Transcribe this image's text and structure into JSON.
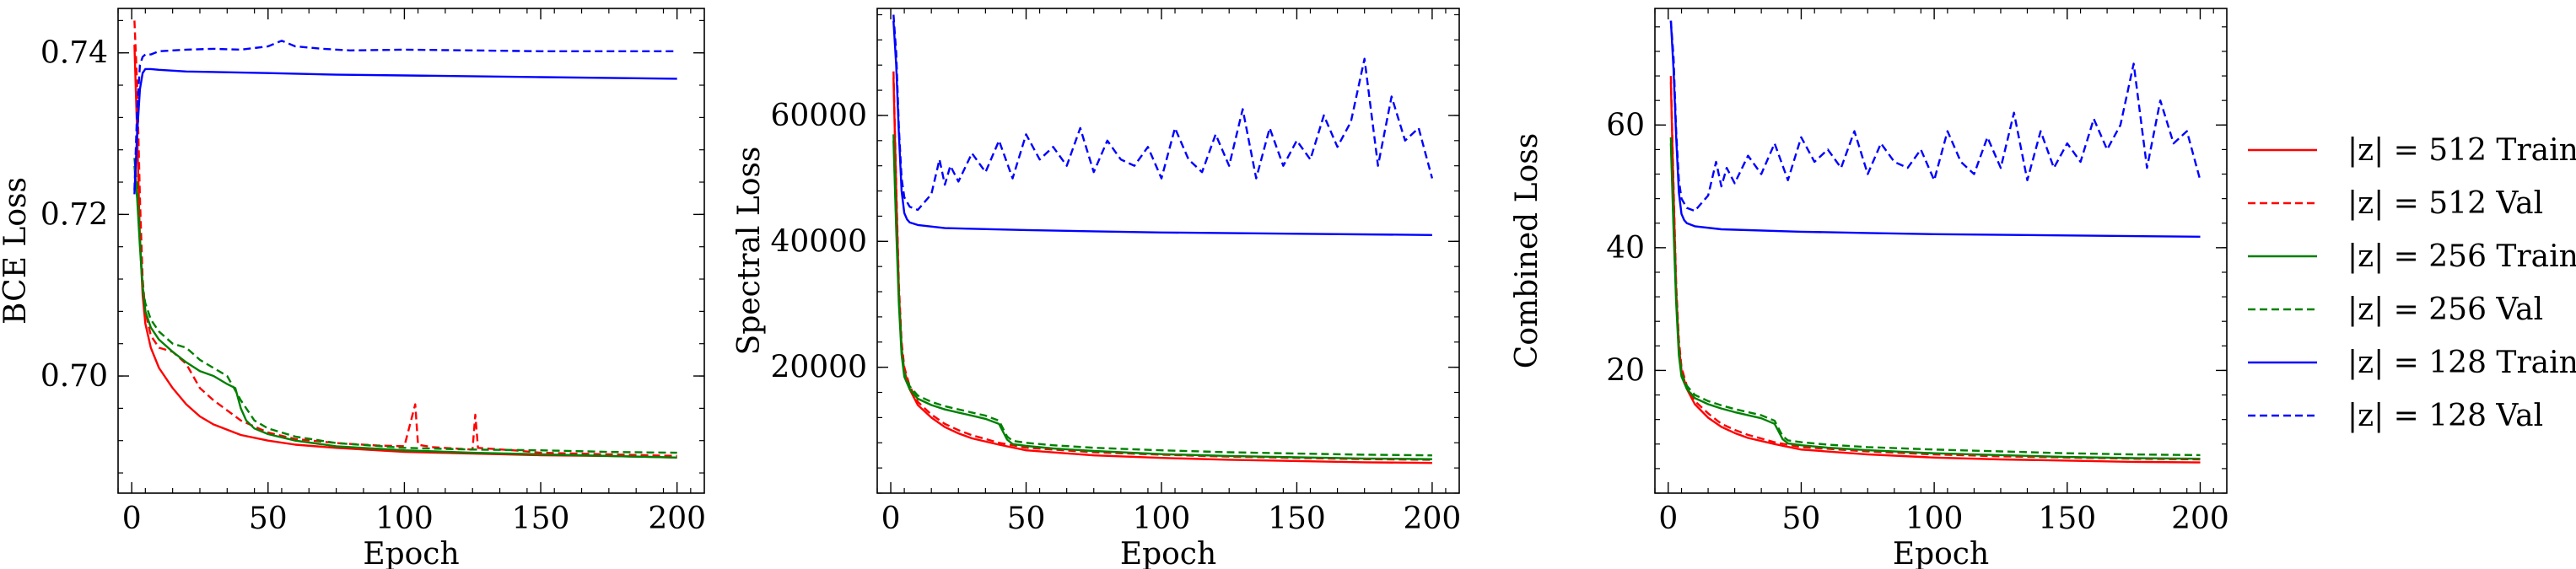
{
  "legend": {
    "placement": "right",
    "entries": [
      {
        "label": "|z| = 512 Train",
        "color": "#ff0000",
        "style": "solid"
      },
      {
        "label": "|z| = 512 Val",
        "color": "#ff0000",
        "style": "dashed"
      },
      {
        "label": "|z| = 256 Train",
        "color": "#008000",
        "style": "solid"
      },
      {
        "label": "|z| = 256 Val",
        "color": "#008000",
        "style": "dashed"
      },
      {
        "label": "|z| = 128 Train",
        "color": "#0000ff",
        "style": "solid"
      },
      {
        "label": "|z| = 128 Val",
        "color": "#0000ff",
        "style": "dashed"
      }
    ]
  },
  "chart_data": [
    {
      "type": "line",
      "xlabel": "Epoch",
      "ylabel": "BCE Loss",
      "xlim": [
        -5,
        210
      ],
      "ylim": [
        0.6855,
        0.7455
      ],
      "xticks": [
        0,
        50,
        100,
        150,
        200
      ],
      "yticks": [
        0.7,
        0.72,
        0.74
      ],
      "ytick_labels": [
        "0.70",
        "0.72",
        "0.74"
      ],
      "series": [
        {
          "name": "|z| = 512 Train",
          "color": "#ff0000",
          "style": "solid",
          "x": [
            1,
            2,
            3,
            4,
            5,
            7,
            10,
            15,
            20,
            25,
            30,
            40,
            50,
            60,
            75,
            100,
            125,
            150,
            175,
            200
          ],
          "y": [
            0.741,
            0.73,
            0.717,
            0.71,
            0.7065,
            0.7035,
            0.701,
            0.6985,
            0.6965,
            0.695,
            0.694,
            0.6927,
            0.692,
            0.6915,
            0.6911,
            0.6906,
            0.6904,
            0.6902,
            0.6901,
            0.6899
          ]
        },
        {
          "name": "|z| = 512 Val",
          "color": "#ff0000",
          "style": "dashed",
          "x": [
            1,
            2,
            3,
            4,
            5,
            7,
            10,
            15,
            20,
            25,
            30,
            40,
            50,
            60,
            75,
            90,
            100,
            104,
            105,
            110,
            125,
            126,
            127,
            140,
            150,
            175,
            200
          ],
          "y": [
            0.744,
            0.736,
            0.722,
            0.712,
            0.708,
            0.705,
            0.7035,
            0.703,
            0.7015,
            0.6985,
            0.697,
            0.6945,
            0.693,
            0.6922,
            0.6917,
            0.6914,
            0.6913,
            0.6965,
            0.6915,
            0.6912,
            0.6909,
            0.6952,
            0.6911,
            0.6908,
            0.6905,
            0.6903,
            0.6901
          ]
        },
        {
          "name": "|z| = 256 Train",
          "color": "#008000",
          "style": "solid",
          "x": [
            1,
            2,
            3,
            4,
            5,
            7,
            10,
            15,
            20,
            25,
            30,
            35,
            38,
            40,
            42,
            45,
            50,
            60,
            75,
            100,
            125,
            150,
            175,
            200
          ],
          "y": [
            0.726,
            0.722,
            0.716,
            0.711,
            0.708,
            0.706,
            0.7045,
            0.703,
            0.7017,
            0.7006,
            0.7,
            0.699,
            0.6985,
            0.696,
            0.6945,
            0.6935,
            0.6928,
            0.692,
            0.6913,
            0.6908,
            0.6905,
            0.6903,
            0.6901,
            0.6899
          ]
        },
        {
          "name": "|z| = 256 Val",
          "color": "#008000",
          "style": "dashed",
          "x": [
            1,
            2,
            3,
            4,
            5,
            7,
            10,
            15,
            20,
            25,
            30,
            35,
            40,
            45,
            50,
            60,
            75,
            100,
            125,
            150,
            175,
            200
          ],
          "y": [
            0.727,
            0.723,
            0.717,
            0.711,
            0.709,
            0.707,
            0.7055,
            0.704,
            0.7035,
            0.702,
            0.701,
            0.7,
            0.697,
            0.6945,
            0.6935,
            0.6925,
            0.6917,
            0.6911,
            0.6909,
            0.6908,
            0.6906,
            0.6905
          ]
        },
        {
          "name": "|z| = 128 Train",
          "color": "#0000ff",
          "style": "solid",
          "x": [
            1,
            2,
            3,
            4,
            5,
            7,
            10,
            20,
            50,
            75,
            100,
            150,
            200
          ],
          "y": [
            0.7225,
            0.73,
            0.7355,
            0.7375,
            0.738,
            0.738,
            0.7379,
            0.7377,
            0.7375,
            0.7373,
            0.7372,
            0.737,
            0.7368
          ]
        },
        {
          "name": "|z| = 128 Val",
          "color": "#0000ff",
          "style": "dashed",
          "x": [
            1,
            2,
            3,
            4,
            5,
            7,
            10,
            20,
            30,
            40,
            50,
            55,
            60,
            70,
            80,
            100,
            125,
            150,
            175,
            200
          ],
          "y": [
            0.723,
            0.733,
            0.7385,
            0.7395,
            0.7398,
            0.7398,
            0.7402,
            0.7404,
            0.7405,
            0.7404,
            0.7408,
            0.7415,
            0.7408,
            0.7405,
            0.7403,
            0.7404,
            0.7403,
            0.7402,
            0.7402,
            0.7402
          ]
        }
      ]
    },
    {
      "type": "line",
      "xlabel": "Epoch",
      "ylabel": "Spectral Loss",
      "xlim": [
        -5,
        210
      ],
      "ylim": [
        0,
        77000
      ],
      "xticks": [
        0,
        50,
        100,
        150,
        200
      ],
      "yticks": [
        20000,
        40000,
        60000
      ],
      "ytick_labels": [
        "20000",
        "40000",
        "60000"
      ],
      "series": [
        {
          "name": "|z| = 512 Train",
          "color": "#ff0000",
          "style": "solid",
          "x": [
            1,
            2,
            3,
            4,
            5,
            7,
            10,
            15,
            20,
            25,
            30,
            40,
            50,
            75,
            100,
            125,
            150,
            175,
            200
          ],
          "y": [
            66000,
            48000,
            32000,
            23000,
            19500,
            16500,
            14000,
            12000,
            10500,
            9500,
            8700,
            7700,
            6800,
            6000,
            5600,
            5300,
            5100,
            4900,
            4800
          ]
        },
        {
          "name": "|z| = 512 Val",
          "color": "#ff0000",
          "style": "dashed",
          "x": [
            1,
            2,
            3,
            4,
            5,
            7,
            10,
            15,
            20,
            25,
            30,
            40,
            50,
            75,
            100,
            125,
            150,
            175,
            200
          ],
          "y": [
            67000,
            49000,
            33000,
            24000,
            20000,
            17000,
            14500,
            12500,
            11000,
            10000,
            9200,
            8000,
            7200,
            6500,
            6100,
            5800,
            5600,
            5400,
            5300
          ]
        },
        {
          "name": "|z| = 256 Train",
          "color": "#008000",
          "style": "solid",
          "x": [
            1,
            2,
            3,
            4,
            5,
            7,
            10,
            15,
            20,
            25,
            30,
            35,
            40,
            43,
            45,
            50,
            60,
            75,
            100,
            125,
            150,
            175,
            200
          ],
          "y": [
            56000,
            42000,
            30000,
            22000,
            18500,
            16500,
            15000,
            14000,
            13300,
            12800,
            12300,
            11800,
            11000,
            8500,
            7800,
            7500,
            7100,
            6700,
            6200,
            5900,
            5700,
            5500,
            5400
          ]
        },
        {
          "name": "|z| = 256 Val",
          "color": "#008000",
          "style": "dashed",
          "x": [
            1,
            2,
            3,
            4,
            5,
            7,
            10,
            15,
            20,
            25,
            30,
            35,
            40,
            43,
            45,
            50,
            60,
            75,
            100,
            125,
            150,
            175,
            200
          ],
          "y": [
            57000,
            43000,
            31000,
            23000,
            19000,
            17000,
            15500,
            14500,
            13800,
            13300,
            12800,
            12300,
            11500,
            9000,
            8300,
            8000,
            7600,
            7200,
            6800,
            6500,
            6300,
            6100,
            6000
          ]
        },
        {
          "name": "|z| = 128 Train",
          "color": "#0000ff",
          "style": "solid",
          "x": [
            1,
            2,
            3,
            4,
            5,
            6,
            7,
            10,
            20,
            50,
            75,
            100,
            150,
            200
          ],
          "y": [
            75000,
            68000,
            57000,
            48000,
            44500,
            43500,
            43000,
            42600,
            42100,
            41800,
            41600,
            41400,
            41200,
            41000
          ]
        },
        {
          "name": "|z| = 128 Val",
          "color": "#0000ff",
          "style": "dashed",
          "x": [
            1,
            2,
            3,
            4,
            5,
            7,
            10,
            12,
            15,
            18,
            20,
            22,
            25,
            30,
            35,
            40,
            45,
            50,
            55,
            60,
            65,
            70,
            75,
            80,
            85,
            90,
            95,
            100,
            105,
            110,
            115,
            120,
            125,
            130,
            135,
            140,
            145,
            150,
            155,
            160,
            165,
            170,
            175,
            180,
            185,
            190,
            195,
            200
          ],
          "y": [
            76000,
            70000,
            58000,
            50000,
            47000,
            45500,
            45000,
            46000,
            47500,
            53000,
            49000,
            52000,
            49500,
            54000,
            51000,
            56000,
            50000,
            57000,
            53000,
            55000,
            52000,
            58000,
            51000,
            56000,
            53000,
            52000,
            55000,
            50000,
            58000,
            53000,
            51000,
            57000,
            52000,
            61000,
            50000,
            58000,
            52000,
            56000,
            53000,
            60000,
            55000,
            59000,
            69000,
            52000,
            63000,
            56000,
            58000,
            50000
          ]
        }
      ]
    },
    {
      "type": "line",
      "xlabel": "Epoch",
      "ylabel": "Combined Loss",
      "xlim": [
        -5,
        210
      ],
      "ylim": [
        0,
        79
      ],
      "xticks": [
        0,
        50,
        100,
        150,
        200
      ],
      "yticks": [
        20,
        40,
        60
      ],
      "ytick_labels": [
        "20",
        "40",
        "60"
      ],
      "series": [
        {
          "name": "|z| = 512 Train",
          "color": "#ff0000",
          "style": "solid",
          "x": [
            1,
            2,
            3,
            4,
            5,
            7,
            10,
            15,
            20,
            25,
            30,
            40,
            50,
            75,
            100,
            125,
            150,
            175,
            200
          ],
          "y": [
            67,
            49,
            33,
            24,
            20,
            17,
            14.5,
            12.3,
            10.8,
            9.8,
            9,
            8,
            7.1,
            6.3,
            5.8,
            5.5,
            5.3,
            5.1,
            5.0
          ]
        },
        {
          "name": "|z| = 512 Val",
          "color": "#ff0000",
          "style": "dashed",
          "x": [
            1,
            2,
            3,
            4,
            5,
            7,
            10,
            15,
            20,
            25,
            30,
            40,
            50,
            75,
            100,
            125,
            150,
            175,
            200
          ],
          "y": [
            68,
            50,
            34,
            25,
            20.5,
            17.5,
            15,
            13,
            11.3,
            10.3,
            9.5,
            8.3,
            7.5,
            6.8,
            6.3,
            6.0,
            5.8,
            5.6,
            5.5
          ]
        },
        {
          "name": "|z| = 256 Train",
          "color": "#008000",
          "style": "solid",
          "x": [
            1,
            2,
            3,
            4,
            5,
            7,
            10,
            15,
            20,
            25,
            30,
            35,
            40,
            43,
            45,
            50,
            60,
            75,
            100,
            125,
            150,
            175,
            200
          ],
          "y": [
            57,
            43,
            31,
            22.5,
            19,
            17,
            15.5,
            14.5,
            13.8,
            13.2,
            12.7,
            12.2,
            11.3,
            8.8,
            8.1,
            7.8,
            7.4,
            7,
            6.5,
            6.2,
            5.9,
            5.7,
            5.6
          ]
        },
        {
          "name": "|z| = 256 Val",
          "color": "#008000",
          "style": "dashed",
          "x": [
            1,
            2,
            3,
            4,
            5,
            7,
            10,
            15,
            20,
            25,
            30,
            35,
            40,
            43,
            45,
            50,
            60,
            75,
            100,
            125,
            150,
            175,
            200
          ],
          "y": [
            58,
            44,
            32,
            23.5,
            19.5,
            17.5,
            16,
            15,
            14.3,
            13.7,
            13.2,
            12.7,
            11.8,
            9.3,
            8.6,
            8.3,
            7.9,
            7.5,
            7.1,
            6.8,
            6.5,
            6.3,
            6.2
          ]
        },
        {
          "name": "|z| = 128 Train",
          "color": "#0000ff",
          "style": "solid",
          "x": [
            1,
            2,
            3,
            4,
            5,
            6,
            7,
            10,
            20,
            50,
            75,
            100,
            150,
            200
          ],
          "y": [
            77,
            69,
            58,
            49,
            45.5,
            44.5,
            44,
            43.5,
            43,
            42.6,
            42.4,
            42.2,
            42,
            41.8
          ]
        },
        {
          "name": "|z| = 128 Val",
          "color": "#0000ff",
          "style": "dashed",
          "x": [
            1,
            2,
            3,
            4,
            5,
            7,
            10,
            12,
            15,
            18,
            20,
            22,
            25,
            30,
            35,
            40,
            45,
            50,
            55,
            60,
            65,
            70,
            75,
            80,
            85,
            90,
            95,
            100,
            105,
            110,
            115,
            120,
            125,
            130,
            135,
            140,
            145,
            150,
            155,
            160,
            165,
            170,
            175,
            180,
            185,
            190,
            195,
            200
          ],
          "y": [
            77,
            71,
            59,
            51,
            48,
            46.5,
            46,
            47,
            48.5,
            54,
            50,
            53,
            50.5,
            55,
            52,
            57,
            51,
            58,
            54,
            56,
            53,
            59,
            52,
            57,
            54,
            53,
            56,
            51,
            59,
            54,
            52,
            58,
            53,
            62,
            51,
            59,
            53,
            57,
            54,
            61,
            56,
            60,
            70,
            53,
            64,
            57,
            59,
            51
          ]
        }
      ]
    }
  ]
}
